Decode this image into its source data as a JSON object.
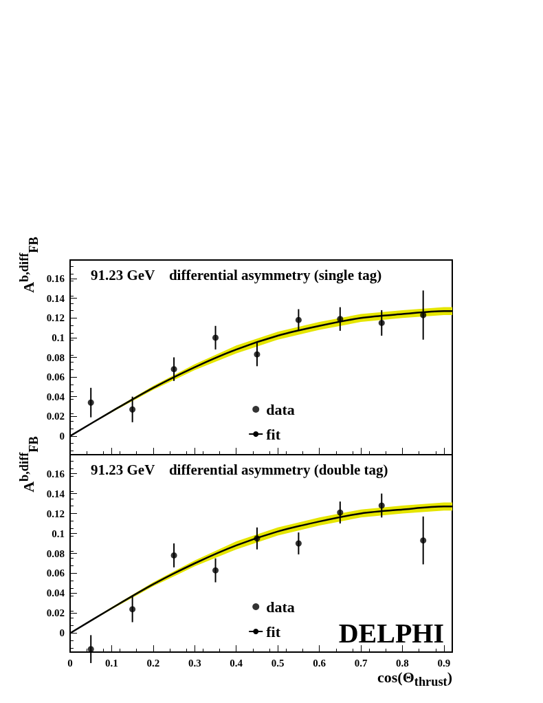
{
  "chart_data": [
    {
      "type": "scatter",
      "title": "91.23 GeV    differential asymmetry (single tag)",
      "ylabel": "A$^{b,diff}$$_{FB}$",
      "xlim": [
        0,
        0.92
      ],
      "ylim": [
        -0.019,
        0.179
      ],
      "xticks": [
        0,
        0.1,
        0.2,
        0.3,
        0.4,
        0.5,
        0.6,
        0.7,
        0.8,
        0.9
      ],
      "yticks": [
        0,
        0.02,
        0.04,
        0.06,
        0.08,
        0.1,
        0.12,
        0.14,
        0.16
      ],
      "tick_labels": "y",
      "grid": false,
      "legend": "bottom",
      "series": [
        {
          "name": "data",
          "marker": "circle",
          "color": "#000000",
          "x": [
            0.05,
            0.15,
            0.25,
            0.35,
            0.45,
            0.55,
            0.65,
            0.75,
            0.85
          ],
          "values": [
            0.034,
            0.027,
            0.068,
            0.1,
            0.083,
            0.118,
            0.119,
            0.115,
            0.123
          ],
          "errors": [
            0.015,
            0.013,
            0.012,
            0.012,
            0.012,
            0.011,
            0.012,
            0.013,
            0.025
          ]
        },
        {
          "name": "fit",
          "type": "line",
          "marker": "none",
          "color": "#000000",
          "x": [
            0,
            0.1,
            0.2,
            0.3,
            0.4,
            0.5,
            0.6,
            0.7,
            0.8,
            0.9,
            0.92
          ],
          "values": [
            0,
            0.025,
            0.049,
            0.07,
            0.088,
            0.102,
            0.112,
            0.12,
            0.124,
            0.127,
            0.127
          ],
          "lower": [
            0,
            0.024,
            0.047,
            0.067,
            0.084,
            0.098,
            0.108,
            0.116,
            0.12,
            0.123,
            0.123
          ],
          "upper": [
            0,
            0.026,
            0.051,
            0.073,
            0.092,
            0.106,
            0.116,
            0.124,
            0.128,
            0.131,
            0.131
          ]
        }
      ]
    },
    {
      "type": "scatter",
      "title": "91.23 GeV    differential asymmetry (double tag)",
      "ylabel": "A$^{b,diff}$$_{FB}$",
      "xlabel": "cos(Θ$_{thrust}$)",
      "annotations": [
        "DELPHI"
      ],
      "xlim": [
        0,
        0.92
      ],
      "ylim": [
        -0.019,
        0.179
      ],
      "xticks": [
        0,
        0.1,
        0.2,
        0.3,
        0.4,
        0.5,
        0.6,
        0.7,
        0.8,
        0.9
      ],
      "yticks": [
        0,
        0.02,
        0.04,
        0.06,
        0.08,
        0.1,
        0.12,
        0.14,
        0.16
      ],
      "grid": false,
      "legend": "bottom",
      "series": [
        {
          "name": "data",
          "marker": "circle",
          "color": "#000000",
          "x": [
            0.05,
            0.15,
            0.25,
            0.35,
            0.45,
            0.55,
            0.65,
            0.75,
            0.85
          ],
          "values": [
            -0.016,
            0.024,
            0.078,
            0.063,
            0.095,
            0.09,
            0.121,
            0.128,
            0.093
          ],
          "errors": [
            0.014,
            0.013,
            0.012,
            0.012,
            0.011,
            0.011,
            0.011,
            0.012,
            0.024
          ]
        },
        {
          "name": "fit",
          "type": "line",
          "marker": "none",
          "color": "#000000",
          "x": [
            0,
            0.1,
            0.2,
            0.3,
            0.4,
            0.5,
            0.6,
            0.7,
            0.8,
            0.9,
            0.92
          ],
          "values": [
            0,
            0.025,
            0.049,
            0.07,
            0.088,
            0.102,
            0.112,
            0.12,
            0.124,
            0.127,
            0.127
          ],
          "lower": [
            0,
            0.024,
            0.047,
            0.067,
            0.084,
            0.098,
            0.108,
            0.116,
            0.12,
            0.123,
            0.123
          ],
          "upper": [
            0,
            0.026,
            0.051,
            0.073,
            0.092,
            0.106,
            0.116,
            0.124,
            0.128,
            0.131,
            0.131
          ]
        }
      ]
    }
  ]
}
